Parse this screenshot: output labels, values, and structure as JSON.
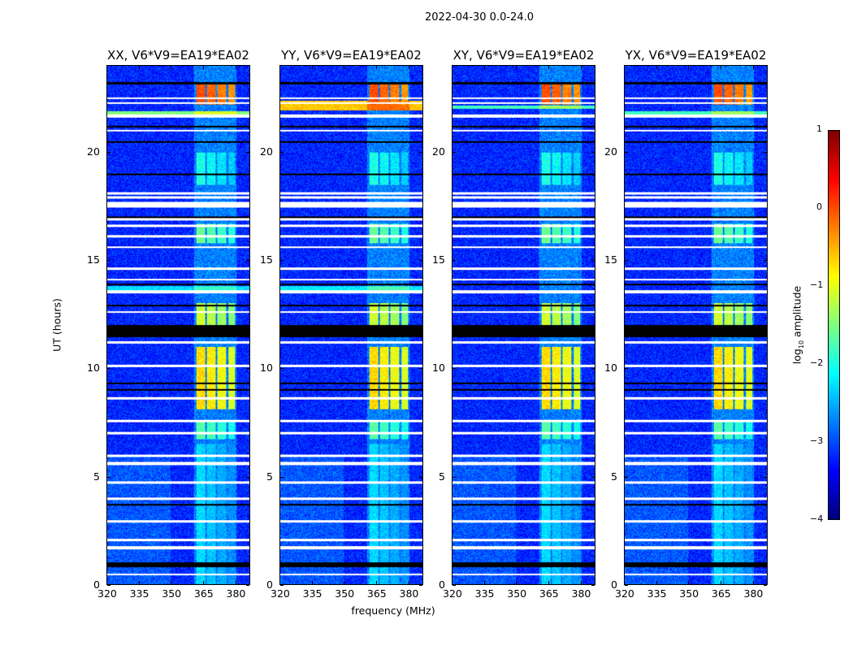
{
  "chart_data": {
    "type": "heatmap",
    "title": "2022-04-30 0.0-24.0",
    "xlabel": "frequency (MHz)",
    "ylabel": "UT (hours)",
    "xlim": [
      320,
      387
    ],
    "ylim": [
      0,
      24
    ],
    "xticks": [
      320,
      335,
      350,
      365,
      380
    ],
    "yticks": [
      0,
      5,
      10,
      15,
      20
    ],
    "colorbar": {
      "label_prefix": "log",
      "label_sub": "10",
      "label_suffix": " amplitude",
      "range": [
        -4,
        1
      ],
      "ticks": [
        1,
        0,
        -1,
        -2,
        -3,
        -4
      ],
      "tick_labels": [
        "1",
        "0",
        "−1",
        "−2",
        "−3",
        "−4"
      ],
      "colormap": "jet"
    },
    "background_level": -3.2,
    "rfi_channels_mhz": [
      [
        362,
        366
      ],
      [
        367,
        371
      ],
      [
        372,
        376
      ],
      [
        377,
        380
      ]
    ],
    "rfi_events": [
      {
        "t": [
          22.2,
          23.2
        ],
        "level": 0.0
      },
      {
        "t": [
          8.1,
          11.0
        ],
        "level": -0.7
      },
      {
        "t": [
          11.8,
          13.0
        ],
        "level": -1.1
      },
      {
        "t": [
          15.8,
          16.7
        ],
        "level": -1.6
      },
      {
        "t": [
          6.7,
          7.6
        ],
        "level": -1.7
      },
      {
        "t": [
          18.5,
          20.0
        ],
        "level": -2.0
      },
      {
        "t": [
          0,
          6.5
        ],
        "level": -2.3
      }
    ],
    "flagged_hours": [
      [
        0.4,
        0.5
      ],
      [
        1.6,
        1.75
      ],
      [
        2.0,
        2.1
      ],
      [
        2.85,
        2.95
      ],
      [
        3.9,
        4.0
      ],
      [
        4.65,
        4.75
      ],
      [
        5.5,
        5.65
      ],
      [
        5.9,
        6.0
      ],
      [
        6.95,
        7.05
      ],
      [
        7.5,
        7.6
      ],
      [
        8.55,
        8.65
      ],
      [
        10.05,
        10.15
      ],
      [
        11.15,
        11.25
      ],
      [
        12.55,
        12.65
      ],
      [
        13.45,
        13.6
      ],
      [
        14.05,
        14.15
      ],
      [
        14.55,
        14.65
      ],
      [
        15.55,
        15.65
      ],
      [
        16.05,
        16.15
      ],
      [
        16.55,
        16.65
      ],
      [
        16.85,
        16.95
      ],
      [
        17.45,
        17.7
      ],
      [
        17.85,
        17.95
      ],
      [
        18.05,
        18.15
      ],
      [
        20.95,
        21.05
      ],
      [
        21.6,
        21.75
      ],
      [
        22.25,
        22.32
      ],
      [
        22.45,
        22.52
      ]
    ],
    "dropout_hours": [
      [
        0.8,
        1.0
      ],
      [
        3.65,
        3.72
      ],
      [
        8.95,
        9.03
      ],
      [
        9.25,
        9.33
      ],
      [
        11.45,
        12.0
      ],
      [
        12.85,
        12.93
      ],
      [
        13.85,
        13.93
      ],
      [
        16.95,
        17.03
      ],
      [
        18.95,
        19.03
      ],
      [
        20.45,
        20.53
      ],
      [
        21.15,
        21.23
      ],
      [
        23.15,
        23.25
      ]
    ],
    "panels": [
      {
        "title": "XX, V6*V9=EA19*EA02",
        "broadband": [
          {
            "t": [
              21.75,
              21.9
            ],
            "level": -1.5
          },
          {
            "t": [
              13.6,
              13.8
            ],
            "level": -2.3
          }
        ]
      },
      {
        "title": "YY, V6*V9=EA19*EA02",
        "broadband": [
          {
            "t": [
              21.95,
              22.4
            ],
            "level": -0.6
          },
          {
            "t": [
              13.6,
              13.8
            ],
            "level": -2.2
          }
        ]
      },
      {
        "title": "XY, V6*V9=EA19*EA02",
        "broadband": [
          {
            "t": [
              22.0,
              22.15
            ],
            "level": -1.8
          }
        ]
      },
      {
        "title": "YX, V6*V9=EA19*EA02",
        "broadband": [
          {
            "t": [
              21.75,
              21.9
            ],
            "level": -1.8
          }
        ]
      }
    ]
  }
}
